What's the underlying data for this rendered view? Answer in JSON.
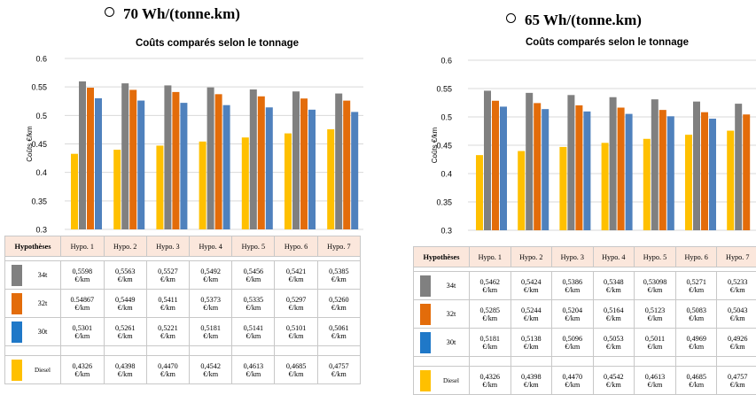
{
  "panels": [
    {
      "heading": "70 Wh/(tonne.km)",
      "chart_title": "Coûts comparés  selon le tonnage",
      "ylabel": "Coûts  €/km",
      "table": {
        "header_label": "Hypothèses",
        "categories": [
          "Hypo.  1",
          "Hypo.  2",
          "Hypo. 3",
          "Hypo.  4",
          "Hypo. 5",
          "Hypo.  6",
          "Hypo.  7"
        ],
        "rows": [
          {
            "label": "34t",
            "color": "#808080",
            "values": [
              "0,5598",
              "0,5563",
              "0,5527",
              "0,5492",
              "0,5456",
              "0,5421",
              "0,5385"
            ]
          },
          {
            "label": "32t",
            "color": "#e36c0a",
            "values": [
              "0.54867",
              "0,5449",
              "0,5411",
              "0,5373",
              "0,5335",
              "0,5297",
              "0,5260"
            ]
          },
          {
            "label": "30t",
            "color": "#1f78c8",
            "values": [
              "0,5301",
              "0,5261",
              "0,5221",
              "0,5181",
              "0,5141",
              "0,5101",
              "0,5061"
            ]
          },
          {
            "label": "Diesel",
            "color": "#ffc000",
            "values": [
              "0,4326",
              "0,4398",
              "0,4470",
              "0,4542",
              "0,4613",
              "0,4685",
              "0,4757"
            ]
          }
        ],
        "unit": "€/km"
      }
    },
    {
      "heading": "65 Wh/(tonne.km)",
      "chart_title": "Coûts comparés  selon le tonnage",
      "ylabel": "Coûts  €/km",
      "table": {
        "header_label": "Hypothèses",
        "categories": [
          "Hypo.  1",
          "Hypo.  2",
          "Hypo. 3",
          "Hypo.  4",
          "Hypo. 5",
          "Hypo.  6",
          "Hypo.  7"
        ],
        "rows": [
          {
            "label": "34t",
            "color": "#808080",
            "values": [
              "0,5462",
              "0,5424",
              "0,5386",
              "0,5348",
              "0,53098",
              "0,5271",
              "0,5233"
            ]
          },
          {
            "label": "32t",
            "color": "#e36c0a",
            "values": [
              "0,5285",
              "0,5244",
              "0,5204",
              "0,5164",
              "0,5123",
              "0,5083",
              "0,5043"
            ]
          },
          {
            "label": "30t",
            "color": "#1f78c8",
            "values": [
              "0,5181",
              "0,5138",
              "0,5096",
              "0,5053",
              "0,5011",
              "0,4969",
              "0,4926"
            ]
          },
          {
            "label": "Diesel",
            "color": "#ffc000",
            "values": [
              "0,4326",
              "0,4398",
              "0,4470",
              "0,4542",
              "0,4613",
              "0,4685",
              "0,4757"
            ]
          }
        ],
        "unit": "€/km"
      }
    }
  ],
  "chart_data": [
    {
      "type": "bar",
      "title": "Coûts comparés  selon le tonnage",
      "ylabel": "Coûts  €/km",
      "ylim": [
        0.3,
        0.6
      ],
      "yticks": [
        "0.3",
        "0.35",
        "0.4",
        "0.45",
        "0.5",
        "0.55",
        "0.6"
      ],
      "grid": true,
      "categories": [
        "Hypo.  1",
        "Hypo.  2",
        "Hypo. 3",
        "Hypo.  4",
        "Hypo. 5",
        "Hypo.  6",
        "Hypo.  7"
      ],
      "series": [
        {
          "name": "Diesel",
          "color": "#ffc000",
          "values": [
            0.4326,
            0.4398,
            0.447,
            0.4542,
            0.4613,
            0.4685,
            0.4757
          ]
        },
        {
          "name": "34t",
          "color": "#808080",
          "values": [
            0.5598,
            0.5563,
            0.5527,
            0.5492,
            0.5456,
            0.5421,
            0.5385
          ]
        },
        {
          "name": "32t",
          "color": "#e36c0a",
          "values": [
            0.54867,
            0.5449,
            0.5411,
            0.5373,
            0.5335,
            0.5297,
            0.526
          ]
        },
        {
          "name": "30t",
          "color": "#4f81bd",
          "values": [
            0.5301,
            0.5261,
            0.5221,
            0.5181,
            0.5141,
            0.5101,
            0.5061
          ]
        }
      ]
    },
    {
      "type": "bar",
      "title": "Coûts comparés  selon le tonnage",
      "ylabel": "Coûts  €/km",
      "ylim": [
        0.3,
        0.6
      ],
      "yticks": [
        "0.3",
        "0.35",
        "0.4",
        "0.45",
        "0.5",
        "0.55",
        "0.6"
      ],
      "grid": true,
      "categories": [
        "Hypo.  1",
        "Hypo.  2",
        "Hypo. 3",
        "Hypo.  4",
        "Hypo. 5",
        "Hypo.  6",
        "Hypo.  7"
      ],
      "series": [
        {
          "name": "Diesel",
          "color": "#ffc000",
          "values": [
            0.4326,
            0.4398,
            0.447,
            0.4542,
            0.4613,
            0.4685,
            0.4757
          ]
        },
        {
          "name": "34t",
          "color": "#808080",
          "values": [
            0.5462,
            0.5424,
            0.5386,
            0.5348,
            0.53098,
            0.5271,
            0.5233
          ]
        },
        {
          "name": "32t",
          "color": "#e36c0a",
          "values": [
            0.5285,
            0.5244,
            0.5204,
            0.5164,
            0.5123,
            0.5083,
            0.5043
          ]
        },
        {
          "name": "30t",
          "color": "#4f81bd",
          "values": [
            0.5181,
            0.5138,
            0.5096,
            0.5053,
            0.5011,
            0.4969,
            0.4926
          ]
        }
      ]
    }
  ]
}
